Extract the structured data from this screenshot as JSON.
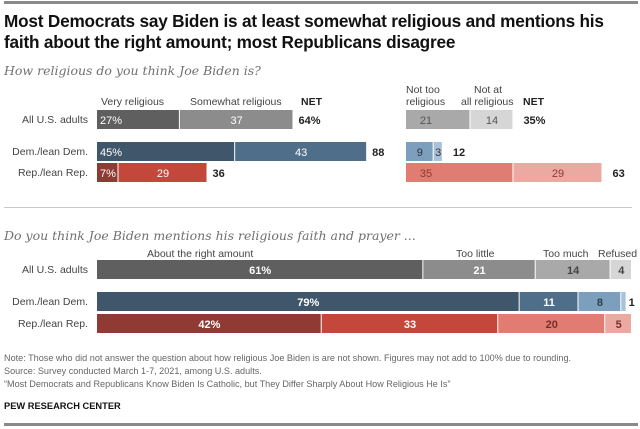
{
  "title": "Most Democrats say Biden is at least somewhat religious and mentions his faith about the right amount; most Republicans disagree",
  "chart_data": [
    {
      "type": "bar",
      "subtype": "diverging-stacked-horizontal",
      "question": "How religious do you think Joe Biden is?",
      "categories": [
        "All U.S. adults",
        "Dem./lean Dem.",
        "Rep./lean Rep."
      ],
      "left_series": [
        {
          "name": "Very religious",
          "values": [
            27,
            45,
            7
          ],
          "labels": [
            "27%",
            "45%",
            "7%"
          ],
          "colors": [
            "#5f5f60",
            "#40566a",
            "#8f3b33"
          ]
        },
        {
          "name": "Somewhat religious",
          "values": [
            37,
            43,
            29
          ],
          "labels": [
            "37",
            "43",
            "29"
          ],
          "colors": [
            "#8c8c8c",
            "#4f6e89",
            "#c4473b"
          ]
        }
      ],
      "left_net": {
        "label": "NET",
        "values": [
          "64%",
          "88",
          "36"
        ]
      },
      "right_series": [
        {
          "name": "Not too religious",
          "values": [
            21,
            9,
            35
          ],
          "labels": [
            "21",
            "9",
            "35"
          ],
          "colors": [
            "#a9a9a9",
            "#7b9fbc",
            "#e07c71"
          ]
        },
        {
          "name": "Not at all religious",
          "values": [
            14,
            3,
            29
          ],
          "labels": [
            "14",
            "3",
            "29"
          ],
          "colors": [
            "#d6d6d6",
            "#a9c2d8",
            "#eba9a2"
          ]
        }
      ],
      "right_net": {
        "label": "NET",
        "values": [
          "35%",
          "12",
          "63"
        ]
      },
      "right_headers": {
        "col1": [
          "Not too",
          "religious"
        ],
        "col2": [
          "Not at",
          "all religious"
        ]
      }
    },
    {
      "type": "bar",
      "subtype": "stacked-horizontal-100",
      "question": "Do you think Joe Biden mentions his religious faith and prayer ...",
      "categories": [
        "All U.S. adults",
        "Dem./lean Dem.",
        "Rep./lean Rep."
      ],
      "series": [
        {
          "name": "About the right amount",
          "values": [
            61,
            79,
            42
          ],
          "labels": [
            "61%",
            "79%",
            "42%"
          ],
          "colors": [
            "#5f5f60",
            "#40566a",
            "#8f3b33"
          ]
        },
        {
          "name": "Too little",
          "values": [
            21,
            11,
            33
          ],
          "labels": [
            "21",
            "11",
            "33"
          ],
          "colors": [
            "#8c8c8c",
            "#4f6e89",
            "#c4473b"
          ]
        },
        {
          "name": "Too much",
          "values": [
            14,
            8,
            20
          ],
          "labels": [
            "14",
            "8",
            "20"
          ],
          "colors": [
            "#a9a9a9",
            "#7b9fbc",
            "#e07c71"
          ]
        },
        {
          "name": "Refused",
          "values": [
            4,
            1,
            5
          ],
          "labels": [
            "4",
            "1",
            "5"
          ],
          "colors": [
            "#d6d6d6",
            "#a9c2d8",
            "#eba9a2"
          ]
        }
      ],
      "xlim": [
        0,
        100
      ]
    }
  ],
  "notes": {
    "note": "Note: Those who did not answer the question about how religious Joe Biden is are not shown. Figures may not add to 100% due to rounding.",
    "source": "Source: Survey conducted March 1-7, 2021, among U.S. adults.",
    "report": "“Most Democrats and Republicans Know Biden Is Catholic, but They Differ Sharply About How Religious He Is”"
  },
  "brand": "PEW RESEARCH CENTER"
}
